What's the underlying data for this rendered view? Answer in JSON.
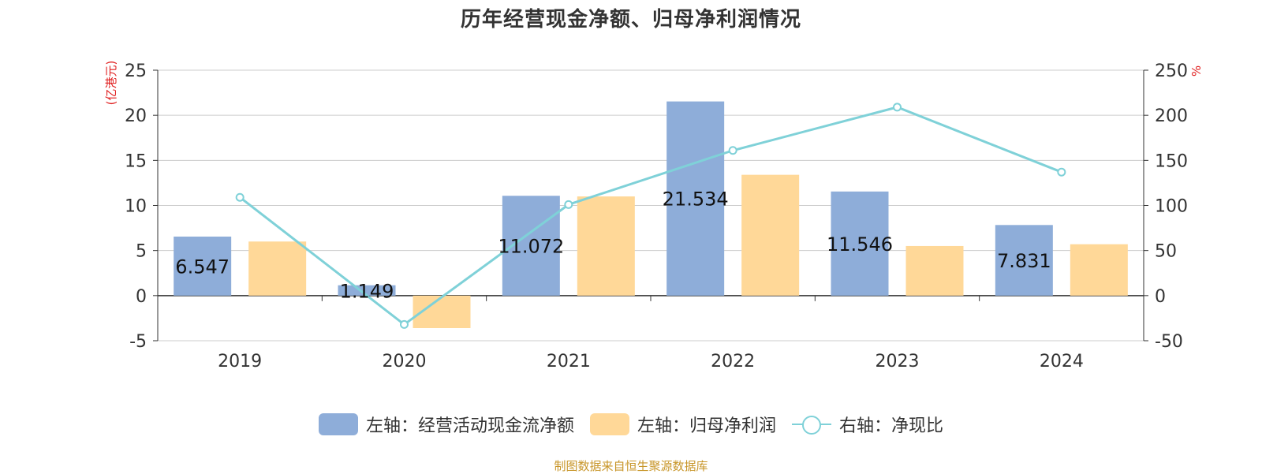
{
  "title": "历年经营现金净额、归母净利润情况",
  "source": "制图数据来自恒生聚源数据库",
  "colors": {
    "bar1": "#8eadd9",
    "bar2": "#ffd898",
    "line": "#7fd1d8",
    "axis_unit": "#e02020",
    "grid": "#cccccc"
  },
  "legend": {
    "item1": "左轴：经营活动现金流净额",
    "item2": "左轴：归母净利润",
    "item3": "右轴：净现比"
  },
  "chart_data": {
    "type": "bar",
    "categories": [
      "2019",
      "2020",
      "2021",
      "2022",
      "2023",
      "2024"
    ],
    "left_axis": {
      "label": "(亿港元)",
      "ticks": [
        25,
        20,
        15,
        10,
        5,
        0,
        -5
      ],
      "ylim": [
        -5,
        25
      ]
    },
    "right_axis": {
      "label": "%",
      "ticks": [
        250,
        200,
        150,
        100,
        50,
        0,
        -50
      ],
      "ylim": [
        -50,
        250
      ]
    },
    "series": [
      {
        "name": "左轴：经营活动现金流净额",
        "axis": "left",
        "type": "bar",
        "values": [
          6.547,
          1.149,
          11.072,
          21.534,
          11.546,
          7.831
        ],
        "labels": [
          "6.547",
          "1.149",
          "11.072",
          "21.534",
          "11.546",
          "7.831"
        ]
      },
      {
        "name": "左轴：归母净利润",
        "axis": "left",
        "type": "bar",
        "values": [
          6.0,
          -3.6,
          11.0,
          13.4,
          5.5,
          5.7
        ]
      },
      {
        "name": "右轴：净现比",
        "axis": "right",
        "type": "line",
        "values": [
          109,
          -32,
          101,
          161,
          209,
          137
        ]
      }
    ],
    "grid": true,
    "legend_position": "bottom"
  }
}
